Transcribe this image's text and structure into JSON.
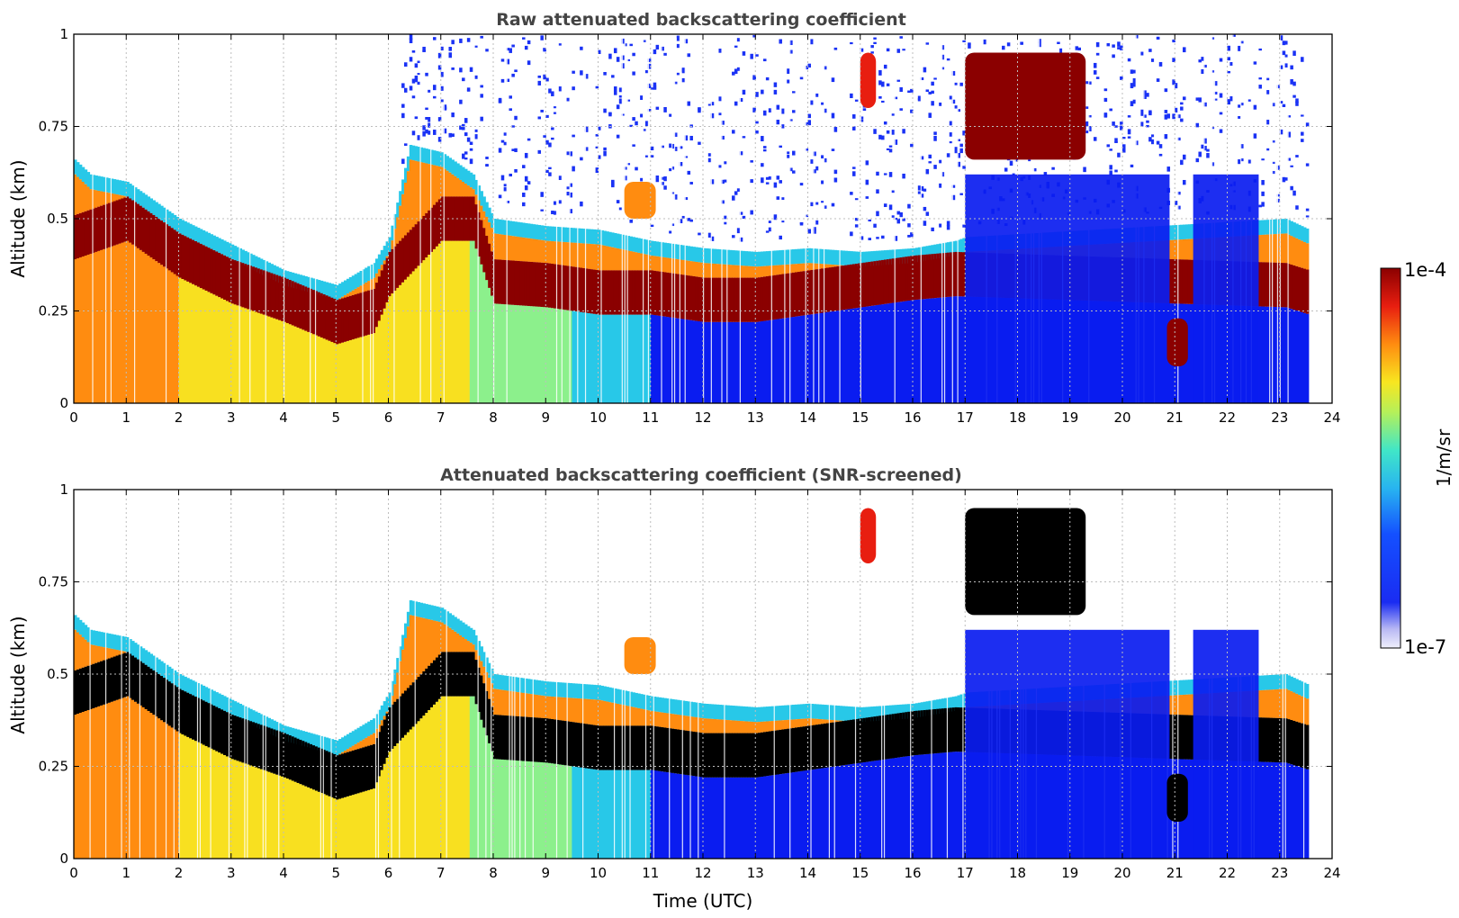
{
  "colors": {
    "low": "#e8e8f8",
    "blue": "#0a1cf0",
    "cyan": "#28c8e8",
    "green": "#8cf08c",
    "yellow": "#f8e020",
    "orange": "#ff8c10",
    "red": "#e81e10",
    "darkred": "#8b0000",
    "saturated": "#000000",
    "noise": "#1a32f5"
  },
  "chart_data": [
    {
      "type": "heatmap",
      "title": "Raw attenuated backscattering coefficient",
      "xlabel": "",
      "ylabel": "Altitude (km)",
      "xlim": [
        0,
        24
      ],
      "ylim": [
        0,
        1
      ],
      "xticks": [
        "0",
        "1",
        "2",
        "3",
        "4",
        "5",
        "6",
        "7",
        "8",
        "9",
        "10",
        "11",
        "12",
        "13",
        "14",
        "15",
        "16",
        "17",
        "18",
        "19",
        "20",
        "21",
        "22",
        "23",
        "24"
      ],
      "yticks": [
        "0",
        "0.25",
        "0.5",
        "0.75",
        "1"
      ],
      "grid": true,
      "data_end_hour": 23.55,
      "layer_top_km": [
        [
          0,
          0.66
        ],
        [
          0.3,
          0.62
        ],
        [
          1,
          0.6
        ],
        [
          2,
          0.5
        ],
        [
          3,
          0.43
        ],
        [
          4,
          0.36
        ],
        [
          5,
          0.32
        ],
        [
          5.7,
          0.38
        ],
        [
          6,
          0.45
        ],
        [
          6.4,
          0.7
        ],
        [
          7,
          0.68
        ],
        [
          7.6,
          0.62
        ],
        [
          8,
          0.5
        ],
        [
          9,
          0.48
        ],
        [
          10,
          0.47
        ],
        [
          11,
          0.44
        ],
        [
          12,
          0.42
        ],
        [
          13,
          0.41
        ],
        [
          14,
          0.42
        ],
        [
          15,
          0.41
        ],
        [
          16,
          0.42
        ],
        [
          16.8,
          0.44
        ],
        [
          17,
          0.45
        ],
        [
          23.1,
          0.5
        ],
        [
          23.55,
          0.47
        ]
      ],
      "layer_peak_km": [
        [
          0,
          0.45
        ],
        [
          1,
          0.5
        ],
        [
          2,
          0.4
        ],
        [
          3,
          0.33
        ],
        [
          4,
          0.28
        ],
        [
          5,
          0.22
        ],
        [
          5.7,
          0.25
        ],
        [
          6,
          0.35
        ],
        [
          7,
          0.5
        ],
        [
          7.6,
          0.5
        ],
        [
          8,
          0.33
        ],
        [
          9,
          0.32
        ],
        [
          10,
          0.3
        ],
        [
          11,
          0.3
        ],
        [
          12,
          0.28
        ],
        [
          13,
          0.28
        ],
        [
          14,
          0.3
        ],
        [
          15,
          0.32
        ],
        [
          16,
          0.34
        ],
        [
          16.8,
          0.35
        ],
        [
          23.1,
          0.32
        ],
        [
          23.55,
          0.3
        ]
      ],
      "cloud_layers": [
        {
          "x0": 17.0,
          "x1": 19.3,
          "y0": 0.66,
          "y1": 0.95,
          "level": "darkred"
        },
        {
          "x0": 20.85,
          "x1": 21.25,
          "y0": 0.1,
          "y1": 0.23,
          "level": "darkred"
        },
        {
          "x0": 15.0,
          "x1": 15.3,
          "y0": 0.8,
          "y1": 0.95,
          "level": "red"
        },
        {
          "x0": 10.5,
          "x1": 11.1,
          "y0": 0.5,
          "y1": 0.6,
          "level": "orange"
        }
      ],
      "colorbar": {
        "label": "1/m/sr",
        "max": "1e-4",
        "min": "1e-7",
        "scale": "log"
      }
    },
    {
      "type": "heatmap",
      "title": "Attenuated backscattering coefficient (SNR-screened)",
      "xlabel": "Time (UTC)",
      "ylabel": "Altitude (km)",
      "xlim": [
        0,
        24
      ],
      "ylim": [
        0,
        1
      ],
      "xticks": [
        "0",
        "1",
        "2",
        "3",
        "4",
        "5",
        "6",
        "7",
        "8",
        "9",
        "10",
        "11",
        "12",
        "13",
        "14",
        "15",
        "16",
        "17",
        "18",
        "19",
        "20",
        "21",
        "22",
        "23",
        "24"
      ],
      "yticks": [
        "0",
        "0.25",
        "0.5",
        "0.75",
        "1"
      ],
      "grid": true,
      "data_end_hour": 23.55,
      "saturated_color": "black",
      "screened": true
    }
  ]
}
